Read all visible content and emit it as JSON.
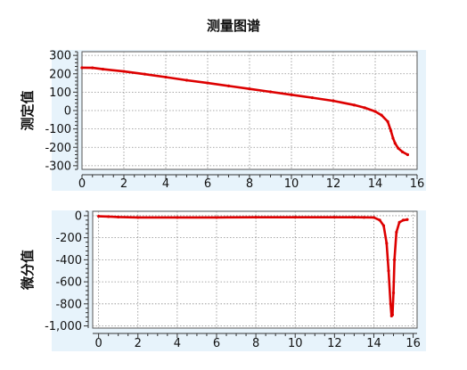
{
  "title": "测量图谱",
  "colors": {
    "axis_band": "#e7f3fb",
    "grid": "#8e8e8e",
    "series": "#dd0000",
    "marker_line": "#1f4fd6",
    "plot_bg": "#ffffff"
  },
  "chart_data": [
    {
      "type": "line",
      "title": "测量图谱",
      "ylabel": "测定值",
      "xlabel": "",
      "xlim": [
        0,
        16
      ],
      "ylim": [
        -320,
        320
      ],
      "grid": true,
      "x_ticks": [
        "0",
        "2",
        "4",
        "6",
        "8",
        "10",
        "12",
        "14",
        "16"
      ],
      "y_ticks": [
        "300",
        "200",
        "100",
        "0",
        "-100",
        "-200",
        "-300"
      ],
      "series": [
        {
          "x": [
            0,
            0.5,
            1,
            2,
            3,
            4,
            5,
            6,
            7,
            8,
            9,
            10,
            11,
            12,
            13,
            13.5,
            14,
            14.3,
            14.6,
            14.75,
            14.85,
            14.95,
            15.1,
            15.3,
            15.55
          ],
          "values": [
            233,
            232,
            225,
            213,
            198,
            182,
            165,
            150,
            134,
            118,
            102,
            86,
            70,
            53,
            30,
            15,
            -5,
            -25,
            -60,
            -110,
            -150,
            -178,
            -205,
            -225,
            -240
          ]
        }
      ]
    },
    {
      "type": "line",
      "title": "",
      "ylabel": "微分值",
      "xlabel": "",
      "xlim": [
        -0.3,
        16.2
      ],
      "ylim": [
        -1020,
        40
      ],
      "grid": true,
      "x_ticks": [
        "0",
        "2",
        "4",
        "6",
        "8",
        "10",
        "12",
        "14",
        "16"
      ],
      "y_ticks": [
        "0",
        "-200",
        "-400",
        "-600",
        "-800",
        "-1,000"
      ],
      "series": [
        {
          "x": [
            0,
            0.5,
            1,
            2,
            4,
            6,
            8,
            10,
            12,
            13,
            13.5,
            14,
            14.3,
            14.5,
            14.65,
            14.75,
            14.85,
            14.9,
            14.95,
            15.0,
            15.05,
            15.15,
            15.3,
            15.5,
            15.7
          ],
          "values": [
            -5,
            -8,
            -12,
            -16,
            -16,
            -16,
            -14,
            -14,
            -14,
            -14,
            -15,
            -16,
            -40,
            -90,
            -250,
            -500,
            -800,
            -910,
            -900,
            -700,
            -400,
            -150,
            -60,
            -40,
            -35
          ]
        }
      ]
    }
  ]
}
